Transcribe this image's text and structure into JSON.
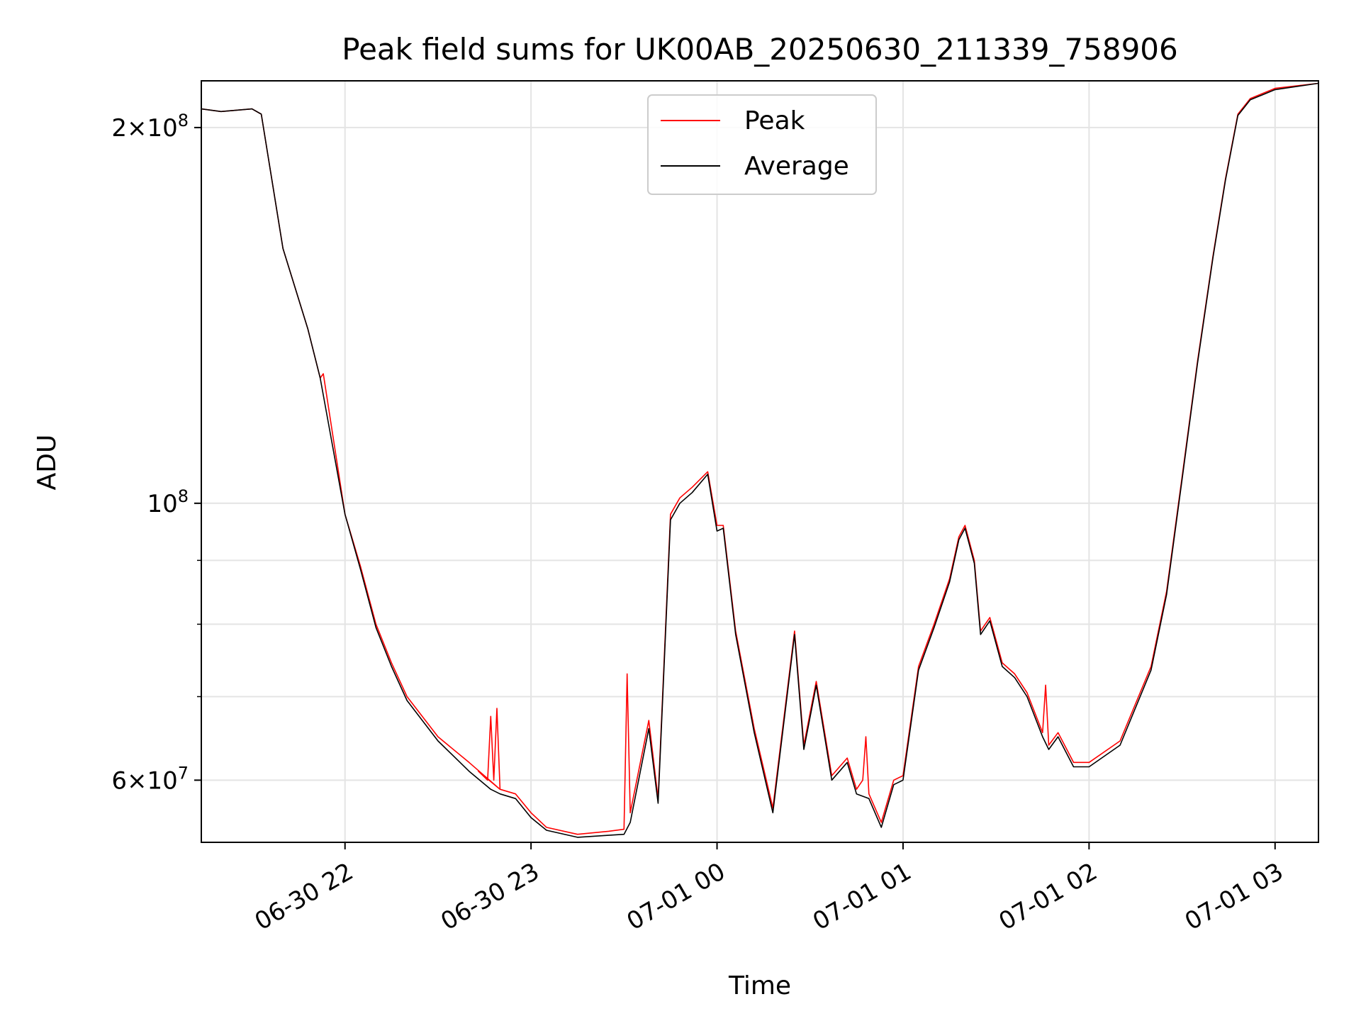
{
  "chart_data": {
    "type": "line",
    "title": "Peak field sums for UK00AB_20250630_211339_758906",
    "xlabel": "Time",
    "ylabel": "ADU",
    "x_type": "datetime",
    "xlim": [
      "2025-06-30 21:13:39",
      "2025-07-01 03:14:00"
    ],
    "ylim": [
      53500000,
      218000000
    ],
    "y_scale": "log",
    "grid": true,
    "legend_position": "top-center",
    "x_ticks": [
      {
        "value": "2025-06-30 22:00",
        "label": "06-30 22"
      },
      {
        "value": "2025-06-30 23:00",
        "label": "06-30 23"
      },
      {
        "value": "2025-07-01 00:00",
        "label": "07-01 00"
      },
      {
        "value": "2025-07-01 01:00",
        "label": "07-01 01"
      },
      {
        "value": "2025-07-01 02:00",
        "label": "07-01 02"
      },
      {
        "value": "2025-07-01 03:00",
        "label": "07-01 03"
      }
    ],
    "y_ticks": [
      {
        "value": 60000000,
        "base": "6",
        "exp": "7"
      },
      {
        "value": 100000000,
        "base": "",
        "exp": "8"
      },
      {
        "value": 200000000,
        "base": "2",
        "exp": "8"
      }
    ],
    "y_minor_ticks": [
      70000000,
      80000000,
      90000000
    ],
    "series": [
      {
        "name": "Peak",
        "color": "#ff0000",
        "points": [
          [
            "2025-06-30 21:13:39",
            207000000
          ],
          [
            "2025-06-30 21:20:00",
            206000000
          ],
          [
            "2025-06-30 21:30:00",
            207000000
          ],
          [
            "2025-06-30 21:33:00",
            205000000
          ],
          [
            "2025-06-30 21:40:00",
            160000000
          ],
          [
            "2025-06-30 21:48:00",
            138000000
          ],
          [
            "2025-06-30 21:52:00",
            126000000
          ],
          [
            "2025-06-30 21:53:00",
            127000000
          ],
          [
            "2025-06-30 22:00:00",
            98000000
          ],
          [
            "2025-06-30 22:05:00",
            89000000
          ],
          [
            "2025-06-30 22:10:00",
            80000000
          ],
          [
            "2025-06-30 22:15:00",
            74500000
          ],
          [
            "2025-06-30 22:20:00",
            70000000
          ],
          [
            "2025-06-30 22:30:00",
            65000000
          ],
          [
            "2025-06-30 22:40:00",
            62000000
          ],
          [
            "2025-06-30 22:50:00",
            59000000
          ],
          [
            "2025-06-30 22:43:00",
            61000000
          ],
          [
            "2025-06-30 22:46:00",
            60000000
          ],
          [
            "2025-06-30 22:47:00",
            67500000
          ],
          [
            "2025-06-30 22:48:00",
            60000000
          ],
          [
            "2025-06-30 22:49:00",
            68500000
          ],
          [
            "2025-06-30 22:50:00",
            59000000
          ],
          [
            "2025-06-30 22:55:00",
            58500000
          ],
          [
            "2025-06-30 23:00:00",
            56500000
          ],
          [
            "2025-06-30 23:05:00",
            55000000
          ],
          [
            "2025-06-30 23:15:00",
            54300000
          ],
          [
            "2025-06-30 23:25:00",
            54600000
          ],
          [
            "2025-06-30 23:30:00",
            54800000
          ],
          [
            "2025-06-30 23:31:00",
            73000000
          ],
          [
            "2025-06-30 23:32:00",
            56500000
          ],
          [
            "2025-06-30 23:38:00",
            67000000
          ],
          [
            "2025-06-30 23:41:00",
            58000000
          ],
          [
            "2025-06-30 23:45:00",
            98000000
          ],
          [
            "2025-06-30 23:48:00",
            101000000
          ],
          [
            "2025-06-30 23:52:00",
            103000000
          ],
          [
            "2025-06-30 23:57:00",
            106000000
          ],
          [
            "2025-07-01 00:00:00",
            96000000
          ],
          [
            "2025-07-01 00:02:00",
            96000000
          ],
          [
            "2025-07-01 00:06:00",
            79000000
          ],
          [
            "2025-07-01 00:12:00",
            66000000
          ],
          [
            "2025-07-01 00:18:00",
            57000000
          ],
          [
            "2025-07-01 00:25:00",
            79000000
          ],
          [
            "2025-07-01 00:28:00",
            64000000
          ],
          [
            "2025-07-01 00:32:00",
            72000000
          ],
          [
            "2025-07-01 00:37:00",
            60500000
          ],
          [
            "2025-07-01 00:42:00",
            62500000
          ],
          [
            "2025-07-01 00:45:00",
            59000000
          ],
          [
            "2025-07-01 00:47:00",
            60000000
          ],
          [
            "2025-07-01 00:48:00",
            65000000
          ],
          [
            "2025-07-01 00:49:00",
            58500000
          ],
          [
            "2025-07-01 00:53:00",
            55500000
          ],
          [
            "2025-07-01 00:57:00",
            60000000
          ],
          [
            "2025-07-01 01:00:00",
            60500000
          ],
          [
            "2025-07-01 01:05:00",
            74000000
          ],
          [
            "2025-07-01 01:10:00",
            80000000
          ],
          [
            "2025-07-01 01:15:00",
            87000000
          ],
          [
            "2025-07-01 01:18:00",
            94000000
          ],
          [
            "2025-07-01 01:20:00",
            96000000
          ],
          [
            "2025-07-01 01:23:00",
            90000000
          ],
          [
            "2025-07-01 01:25:00",
            79000000
          ],
          [
            "2025-07-01 01:28:00",
            81000000
          ],
          [
            "2025-07-01 01:32:00",
            74500000
          ],
          [
            "2025-07-01 01:36:00",
            73000000
          ],
          [
            "2025-07-01 01:40:00",
            70500000
          ],
          [
            "2025-07-01 01:45:00",
            65500000
          ],
          [
            "2025-07-01 01:46:00",
            71500000
          ],
          [
            "2025-07-01 01:47:00",
            64000000
          ],
          [
            "2025-07-01 01:50:00",
            65500000
          ],
          [
            "2025-07-01 01:55:00",
            62000000
          ],
          [
            "2025-07-01 02:00:00",
            62000000
          ],
          [
            "2025-07-01 02:10:00",
            64500000
          ],
          [
            "2025-07-01 02:20:00",
            74000000
          ],
          [
            "2025-07-01 02:25:00",
            85000000
          ],
          [
            "2025-07-01 02:30:00",
            105000000
          ],
          [
            "2025-07-01 02:35:00",
            130000000
          ],
          [
            "2025-07-01 02:40:00",
            158000000
          ],
          [
            "2025-07-01 02:44:00",
            182000000
          ],
          [
            "2025-07-01 02:48:00",
            205000000
          ],
          [
            "2025-07-01 02:52:00",
            211000000
          ],
          [
            "2025-07-01 03:00:00",
            215000000
          ],
          [
            "2025-07-01 03:14:00",
            217000000
          ]
        ]
      },
      {
        "name": "Average",
        "color": "#000000",
        "points": [
          [
            "2025-06-30 21:13:39",
            207000000
          ],
          [
            "2025-06-30 21:20:00",
            206000000
          ],
          [
            "2025-06-30 21:30:00",
            207000000
          ],
          [
            "2025-06-30 21:33:00",
            205000000
          ],
          [
            "2025-06-30 21:40:00",
            160000000
          ],
          [
            "2025-06-30 21:48:00",
            138000000
          ],
          [
            "2025-06-30 21:52:00",
            126000000
          ],
          [
            "2025-06-30 22:00:00",
            98000000
          ],
          [
            "2025-06-30 22:05:00",
            88500000
          ],
          [
            "2025-06-30 22:10:00",
            79500000
          ],
          [
            "2025-06-30 22:15:00",
            74000000
          ],
          [
            "2025-06-30 22:20:00",
            69500000
          ],
          [
            "2025-06-30 22:30:00",
            64500000
          ],
          [
            "2025-06-30 22:40:00",
            61000000
          ],
          [
            "2025-06-30 22:47:00",
            59000000
          ],
          [
            "2025-06-30 22:50:00",
            58500000
          ],
          [
            "2025-06-30 22:55:00",
            58000000
          ],
          [
            "2025-06-30 23:00:00",
            56000000
          ],
          [
            "2025-06-30 23:05:00",
            54700000
          ],
          [
            "2025-06-30 23:15:00",
            54000000
          ],
          [
            "2025-06-30 23:25:00",
            54200000
          ],
          [
            "2025-06-30 23:30:00",
            54300000
          ],
          [
            "2025-06-30 23:32:00",
            55500000
          ],
          [
            "2025-06-30 23:38:00",
            66000000
          ],
          [
            "2025-06-30 23:41:00",
            57500000
          ],
          [
            "2025-06-30 23:45:00",
            97000000
          ],
          [
            "2025-06-30 23:48:00",
            100000000
          ],
          [
            "2025-06-30 23:52:00",
            102000000
          ],
          [
            "2025-06-30 23:57:00",
            105500000
          ],
          [
            "2025-07-01 00:00:00",
            95000000
          ],
          [
            "2025-07-01 00:02:00",
            95500000
          ],
          [
            "2025-07-01 00:06:00",
            78500000
          ],
          [
            "2025-07-01 00:12:00",
            65500000
          ],
          [
            "2025-07-01 00:18:00",
            56500000
          ],
          [
            "2025-07-01 00:25:00",
            78500000
          ],
          [
            "2025-07-01 00:28:00",
            63500000
          ],
          [
            "2025-07-01 00:32:00",
            71500000
          ],
          [
            "2025-07-01 00:37:00",
            60000000
          ],
          [
            "2025-07-01 00:42:00",
            62000000
          ],
          [
            "2025-07-01 00:45:00",
            58500000
          ],
          [
            "2025-07-01 00:49:00",
            58000000
          ],
          [
            "2025-07-01 00:53:00",
            55000000
          ],
          [
            "2025-07-01 00:57:00",
            59500000
          ],
          [
            "2025-07-01 01:00:00",
            60000000
          ],
          [
            "2025-07-01 01:05:00",
            73500000
          ],
          [
            "2025-07-01 01:10:00",
            79500000
          ],
          [
            "2025-07-01 01:15:00",
            86500000
          ],
          [
            "2025-07-01 01:18:00",
            93500000
          ],
          [
            "2025-07-01 01:20:00",
            95500000
          ],
          [
            "2025-07-01 01:23:00",
            89500000
          ],
          [
            "2025-07-01 01:25:00",
            78500000
          ],
          [
            "2025-07-01 01:28:00",
            80500000
          ],
          [
            "2025-07-01 01:32:00",
            74000000
          ],
          [
            "2025-07-01 01:36:00",
            72500000
          ],
          [
            "2025-07-01 01:40:00",
            70000000
          ],
          [
            "2025-07-01 01:45:00",
            65000000
          ],
          [
            "2025-07-01 01:47:00",
            63500000
          ],
          [
            "2025-07-01 01:50:00",
            65000000
          ],
          [
            "2025-07-01 01:55:00",
            61500000
          ],
          [
            "2025-07-01 02:00:00",
            61500000
          ],
          [
            "2025-07-01 02:10:00",
            64000000
          ],
          [
            "2025-07-01 02:20:00",
            73500000
          ],
          [
            "2025-07-01 02:25:00",
            84500000
          ],
          [
            "2025-07-01 02:30:00",
            104500000
          ],
          [
            "2025-07-01 02:35:00",
            129500000
          ],
          [
            "2025-07-01 02:40:00",
            157500000
          ],
          [
            "2025-07-01 02:44:00",
            181500000
          ],
          [
            "2025-07-01 02:48:00",
            204500000
          ],
          [
            "2025-07-01 02:52:00",
            210500000
          ],
          [
            "2025-07-01 03:00:00",
            214500000
          ],
          [
            "2025-07-01 03:14:00",
            217000000
          ]
        ]
      }
    ]
  }
}
